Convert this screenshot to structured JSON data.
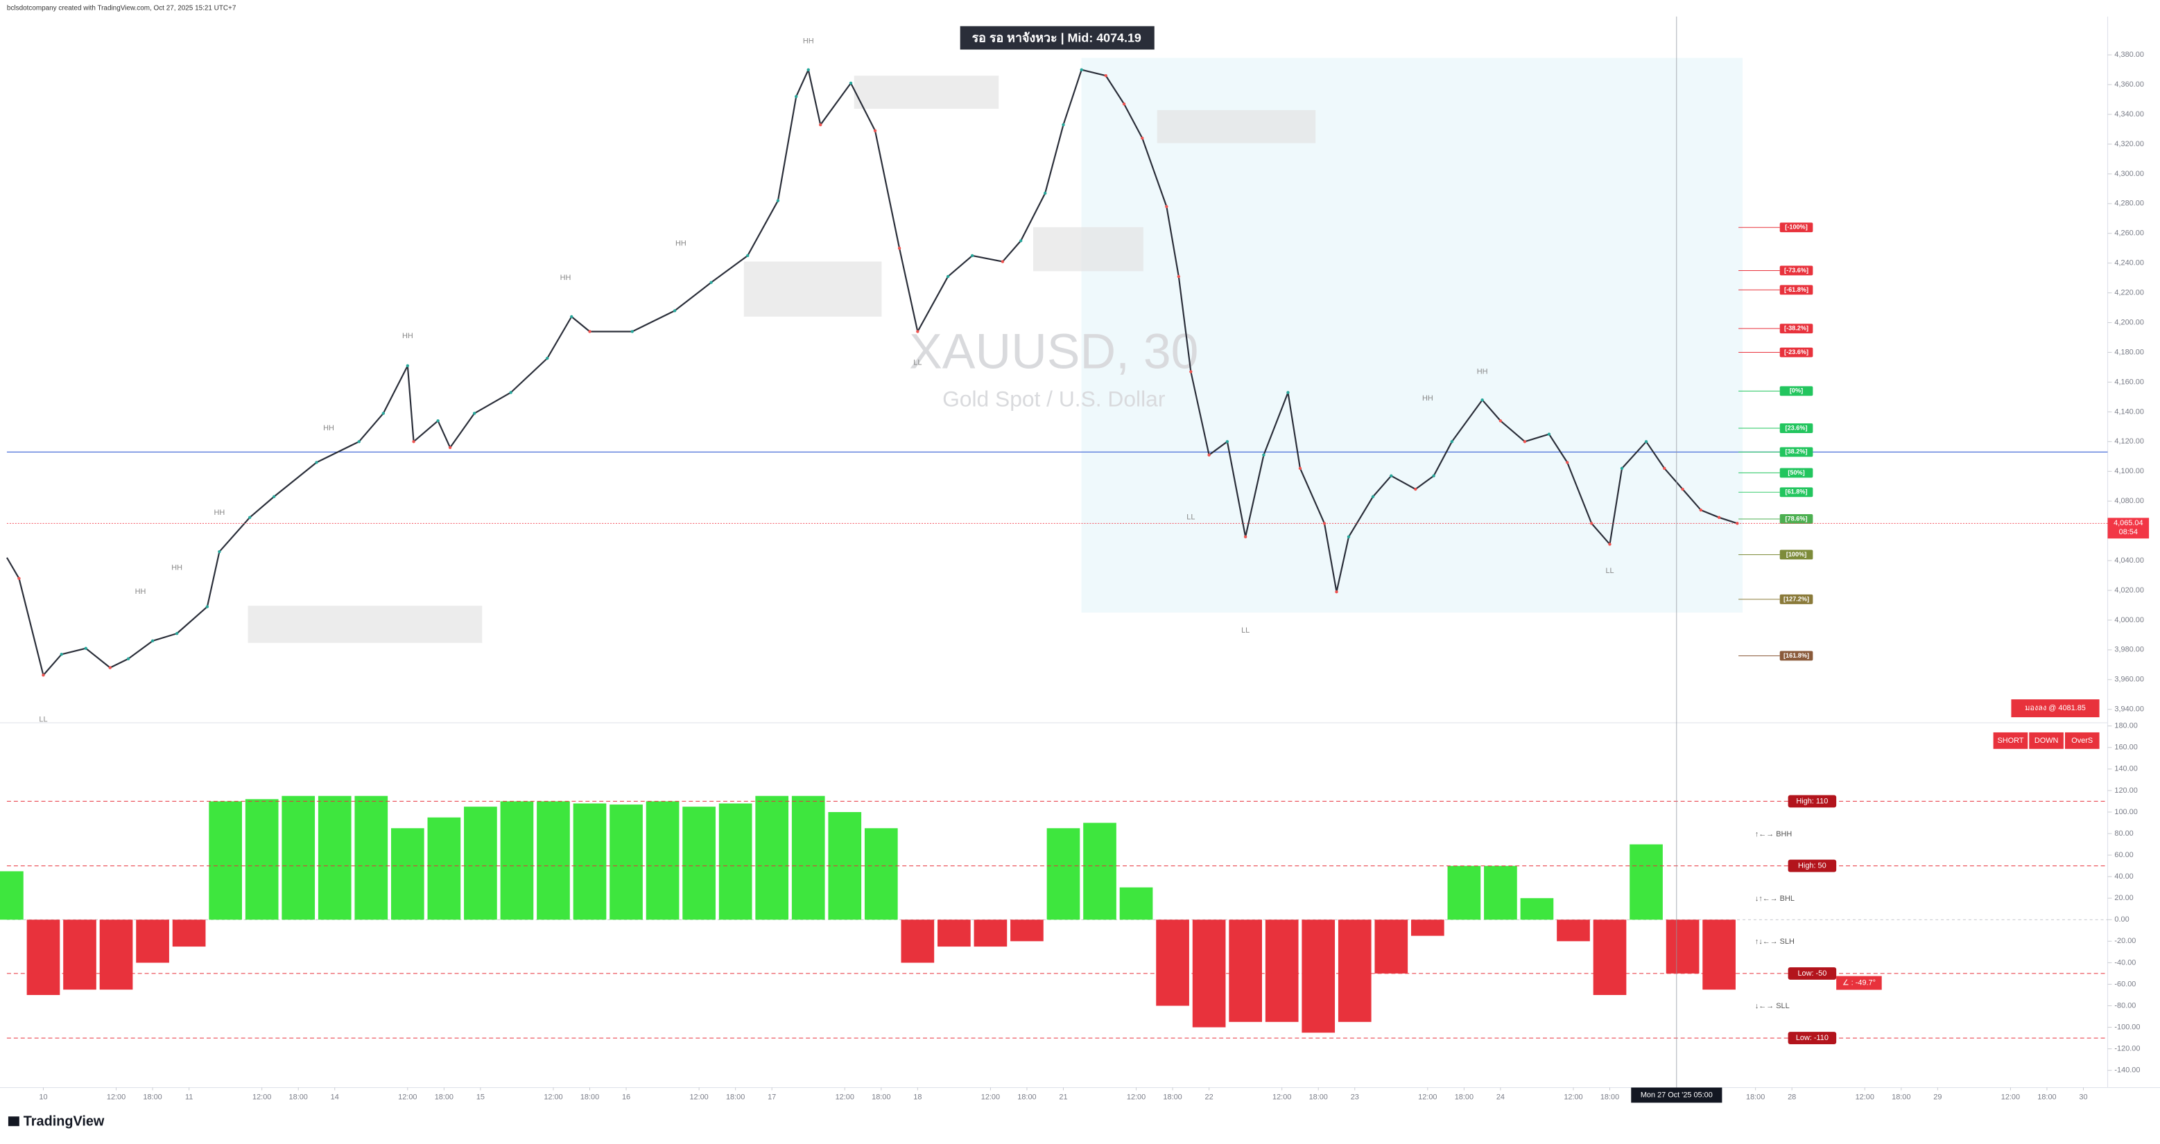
{
  "header": {
    "title": "bclsdotcompany created with TradingView.com, Oct 27, 2025 15:21 UTC+7"
  },
  "footer": {
    "logo": "TradingView"
  },
  "chart_data": [
    {
      "type": "line",
      "title": "XAUUSD, 30",
      "subtitle": "Gold Spot / U.S. Dollar",
      "banner": "รอ รอ หาจังหวะ | Mid: 4074.19",
      "color": "#2a2e39",
      "grid": false,
      "x": [
        -6,
        -4,
        0,
        3,
        7,
        11,
        14,
        18,
        22,
        27,
        29,
        34,
        38,
        45,
        52,
        56,
        60,
        61,
        65,
        67,
        71,
        77,
        83,
        87,
        90,
        97,
        104,
        110,
        116,
        121,
        124,
        126,
        128,
        133,
        137,
        141,
        144,
        149,
        153,
        158,
        161,
        165,
        168,
        171,
        175,
        178,
        181,
        185,
        187,
        189,
        192,
        195,
        198,
        201,
        205,
        207,
        211,
        213,
        215,
        219,
        222,
        226,
        229,
        232,
        237,
        240,
        244,
        248,
        251,
        255,
        258,
        260,
        264,
        267,
        270,
        273,
        276,
        279
      ],
      "values": [
        4042,
        4028,
        3963,
        3977,
        3981,
        3968,
        3974,
        3986,
        3991,
        4009,
        4046,
        4069,
        4083,
        4106,
        4120,
        4139,
        4171,
        4120,
        4134,
        4116,
        4139,
        4153,
        4176,
        4204,
        4194,
        4194,
        4208,
        4227,
        4245,
        4282,
        4352,
        4370,
        4333,
        4361,
        4329,
        4250,
        4194,
        4231,
        4245,
        4241,
        4255,
        4287,
        4333,
        4370,
        4366,
        4347,
        4324,
        4278,
        4231,
        4167,
        4111,
        4120,
        4056,
        4111,
        4153,
        4102,
        4065,
        4019,
        4056,
        4083,
        4097,
        4088,
        4097,
        4120,
        4148,
        4134,
        4120,
        4125,
        4106,
        4065,
        4051,
        4102,
        4120,
        4102,
        4088,
        4074,
        4069,
        4065.04
      ],
      "xlim": [
        -6,
        340
      ],
      "ylim": [
        3931,
        4403
      ],
      "yticks": [
        {
          "value": 3940,
          "label": "3,940.00"
        },
        {
          "value": 3960,
          "label": "3,960.00"
        },
        {
          "value": 3980,
          "label": "3,980.00"
        },
        {
          "value": 4000,
          "label": "4,000.00"
        },
        {
          "value": 4020,
          "label": "4,020.00"
        },
        {
          "value": 4040,
          "label": "4,040.00"
        },
        {
          "value": 4060,
          "label": "4,060.00"
        },
        {
          "value": 4080,
          "label": "4,080.00"
        },
        {
          "value": 4100,
          "label": "4,100.00"
        },
        {
          "value": 4120,
          "label": "4,120.00"
        },
        {
          "value": 4140,
          "label": "4,140.00"
        },
        {
          "value": 4160,
          "label": "4,160.00"
        },
        {
          "value": 4180,
          "label": "4,180.00"
        },
        {
          "value": 4200,
          "label": "4,200.00"
        },
        {
          "value": 4220,
          "label": "4,220.00"
        },
        {
          "value": 4240,
          "label": "4,240.00"
        },
        {
          "value": 4260,
          "label": "4,260.00"
        },
        {
          "value": 4280,
          "label": "4,280.00"
        },
        {
          "value": 4300,
          "label": "4,300.00"
        },
        {
          "value": 4320,
          "label": "4,320.00"
        },
        {
          "value": 4340,
          "label": "4,340.00"
        },
        {
          "value": 4360,
          "label": "4,360.00"
        },
        {
          "value": 4380,
          "label": "4,380.00"
        }
      ],
      "current_price": {
        "value": 4065.04,
        "label": "4,065.04",
        "countdown": "08:54",
        "color": "#f23645"
      },
      "hlines": [
        {
          "value": 4113,
          "color": "#4a6fd8"
        }
      ],
      "fib_levels": [
        {
          "label": "[-100%]",
          "value": 4264,
          "color": "#e8323c"
        },
        {
          "label": "[-73.6%]",
          "value": 4235,
          "color": "#e8323c"
        },
        {
          "label": "[-61.8%]",
          "value": 4222,
          "color": "#e8323c"
        },
        {
          "label": "[-38.2%]",
          "value": 4196,
          "color": "#e8323c"
        },
        {
          "label": "[-23.6%]",
          "value": 4180,
          "color": "#e8323c"
        },
        {
          "label": "[0%]",
          "value": 4154,
          "color": "#22c55e"
        },
        {
          "label": "[23.6%]",
          "value": 4129,
          "color": "#22c55e"
        },
        {
          "label": "[38.2%]",
          "value": 4113,
          "color": "#22c55e"
        },
        {
          "label": "[50%]",
          "value": 4099,
          "color": "#22c55e"
        },
        {
          "label": "[61.8%]",
          "value": 4086,
          "color": "#22c55e"
        },
        {
          "label": "[78.6%]",
          "value": 4068,
          "color": "#4caf50"
        },
        {
          "label": "[100%]",
          "value": 4044,
          "color": "#7d8b3a"
        },
        {
          "label": "[127.2%]",
          "value": 4014,
          "color": "#8a7a3a"
        },
        {
          "label": "[161.8%]",
          "value": 3976,
          "color": "#8a5a3a"
        }
      ],
      "swing_labels": [
        {
          "label": "LL",
          "x": 0,
          "y": 3933
        },
        {
          "label": "HH",
          "x": 16,
          "y": 4019
        },
        {
          "label": "HH",
          "x": 22,
          "y": 4035
        },
        {
          "label": "HH",
          "x": 29,
          "y": 4072
        },
        {
          "label": "HH",
          "x": 47,
          "y": 4129
        },
        {
          "label": "HH",
          "x": 60,
          "y": 4191
        },
        {
          "label": "HH",
          "x": 86,
          "y": 4230
        },
        {
          "label": "HH",
          "x": 105,
          "y": 4253
        },
        {
          "label": "HH",
          "x": 126,
          "y": 4389
        },
        {
          "label": "LL",
          "x": 144,
          "y": 4173
        },
        {
          "label": "LL",
          "x": 189,
          "y": 4069
        },
        {
          "label": "LL",
          "x": 198,
          "y": 3993
        },
        {
          "label": "HH",
          "x": 228,
          "y": 4149
        },
        {
          "label": "HH",
          "x": 237,
          "y": 4167
        },
        {
          "label": "LL",
          "x": 258,
          "y": 4033
        }
      ],
      "bias_label": "มองลง @ 4081.85",
      "signals": [
        "SHORT",
        "DOWN",
        "OverS"
      ]
    },
    {
      "type": "bar",
      "positive_color": "#3ee63e",
      "negative_color": "#e8323c",
      "x": [
        -6,
        0,
        6,
        12,
        18,
        24,
        30,
        36,
        42,
        48,
        54,
        60,
        66,
        72,
        78,
        84,
        90,
        96,
        102,
        108,
        114,
        120,
        126,
        132,
        138,
        144,
        150,
        156,
        162,
        168,
        174,
        180,
        186,
        192,
        198,
        204,
        210,
        216,
        222,
        228,
        234,
        240,
        246,
        252,
        258,
        264,
        270,
        276
      ],
      "values": [
        45,
        -70,
        -65,
        -65,
        -40,
        -25,
        110,
        112,
        115,
        115,
        115,
        85,
        95,
        105,
        110,
        110,
        108,
        107,
        110,
        105,
        108,
        115,
        115,
        100,
        85,
        -40,
        -25,
        -25,
        -20,
        85,
        90,
        30,
        -80,
        -100,
        -95,
        -95,
        -105,
        -95,
        -50,
        -15,
        50,
        50,
        20,
        -20,
        -70,
        70,
        -50,
        -65
      ],
      "xlim": [
        -6,
        340
      ],
      "ylim": [
        -156,
        183
      ],
      "yticks": [
        {
          "value": -140,
          "label": "-140.00"
        },
        {
          "value": -120,
          "label": "-120.00"
        },
        {
          "value": -100,
          "label": "-100.00"
        },
        {
          "value": -80,
          "label": "-80.00"
        },
        {
          "value": -60,
          "label": "-60.00"
        },
        {
          "value": -40,
          "label": "-40.00"
        },
        {
          "value": -20,
          "label": "-20.00"
        },
        {
          "value": 0,
          "label": "0.00"
        },
        {
          "value": 20,
          "label": "20.00"
        },
        {
          "value": 40,
          "label": "40.00"
        },
        {
          "value": 60,
          "label": "60.00"
        },
        {
          "value": 80,
          "label": "80.00"
        },
        {
          "value": 100,
          "label": "100.00"
        },
        {
          "value": 120,
          "label": "120.00"
        },
        {
          "value": 140,
          "label": "140.00"
        },
        {
          "value": 160,
          "label": "160.00"
        },
        {
          "value": 180,
          "label": "180.00"
        }
      ],
      "levels": [
        {
          "value": 110,
          "label": "High: 110"
        },
        {
          "value": 50,
          "label": "High: 50"
        },
        {
          "value": -50,
          "label": "Low: -50"
        },
        {
          "value": -110,
          "label": "Low: -110"
        }
      ],
      "side_labels": [
        "↑←→ BHH",
        "↓↑←→ BHL",
        "↑↓←→ SLH",
        "↓←→ SLL"
      ],
      "angle_label": "∠ : -49.7°",
      "xticks": [
        {
          "value": 0,
          "label": "10"
        },
        {
          "value": 12,
          "label": "12:00"
        },
        {
          "value": 18,
          "label": "18:00"
        },
        {
          "value": 24,
          "label": "11"
        },
        {
          "value": 36,
          "label": "12:00"
        },
        {
          "value": 42,
          "label": "18:00"
        },
        {
          "value": 48,
          "label": "14"
        },
        {
          "value": 60,
          "label": "12:00"
        },
        {
          "value": 66,
          "label": "18:00"
        },
        {
          "value": 72,
          "label": "15"
        },
        {
          "value": 84,
          "label": "12:00"
        },
        {
          "value": 90,
          "label": "18:00"
        },
        {
          "value": 96,
          "label": "16"
        },
        {
          "value": 108,
          "label": "12:00"
        },
        {
          "value": 114,
          "label": "18:00"
        },
        {
          "value": 120,
          "label": "17"
        },
        {
          "value": 132,
          "label": "12:00"
        },
        {
          "value": 138,
          "label": "18:00"
        },
        {
          "value": 144,
          "label": "18"
        },
        {
          "value": 156,
          "label": "12:00"
        },
        {
          "value": 162,
          "label": "18:00"
        },
        {
          "value": 168,
          "label": "21"
        },
        {
          "value": 180,
          "label": "12:00"
        },
        {
          "value": 186,
          "label": "18:00"
        },
        {
          "value": 192,
          "label": "22"
        },
        {
          "value": 204,
          "label": "12:00"
        },
        {
          "value": 210,
          "label": "18:00"
        },
        {
          "value": 216,
          "label": "23"
        },
        {
          "value": 228,
          "label": "12:00"
        },
        {
          "value": 234,
          "label": "18:00"
        },
        {
          "value": 240,
          "label": "24"
        },
        {
          "value": 252,
          "label": "12:00"
        },
        {
          "value": 258,
          "label": "18:00"
        },
        {
          "value": 282,
          "label": "18:00"
        },
        {
          "value": 288,
          "label": "28"
        },
        {
          "value": 300,
          "label": "12:00"
        },
        {
          "value": 306,
          "label": "18:00"
        },
        {
          "value": 312,
          "label": "29"
        },
        {
          "value": 324,
          "label": "12:00"
        },
        {
          "value": 330,
          "label": "18:00"
        },
        {
          "value": 336,
          "label": "30"
        }
      ],
      "crosshair": {
        "value": 269,
        "label": "Mon 27 Oct '25   05:00"
      }
    }
  ]
}
